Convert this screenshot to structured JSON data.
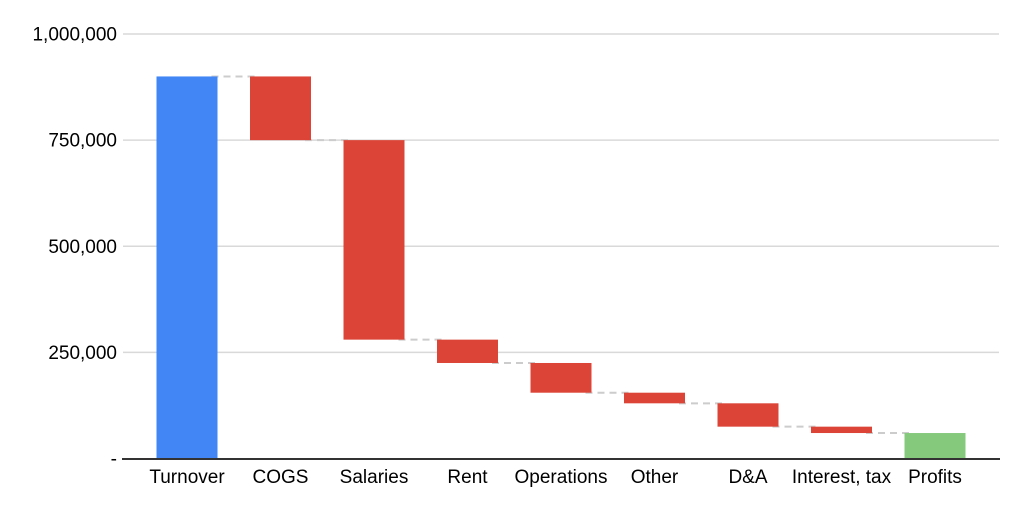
{
  "chart_data": {
    "type": "bar",
    "subtype": "waterfall",
    "title": "",
    "xlabel": "",
    "ylabel": "",
    "legend": "none",
    "grid": "horizontal",
    "connector_style": "dashed",
    "categories": [
      "Turnover",
      "COGS",
      "Salaries",
      "Rent",
      "Operations",
      "Other",
      "D&A",
      "Interest, tax",
      "Profits"
    ],
    "series": [
      {
        "name": "Amount",
        "values": [
          900000,
          -150000,
          -470000,
          -55000,
          -70000,
          -25000,
          -55000,
          -15000,
          60000
        ]
      }
    ],
    "bar_types": [
      "total",
      "decrease",
      "decrease",
      "decrease",
      "decrease",
      "decrease",
      "decrease",
      "decrease",
      "total"
    ],
    "levels": [
      {
        "start": 0,
        "end": 900000
      },
      {
        "start": 900000,
        "end": 750000
      },
      {
        "start": 750000,
        "end": 280000
      },
      {
        "start": 280000,
        "end": 225000
      },
      {
        "start": 225000,
        "end": 155000
      },
      {
        "start": 155000,
        "end": 130000
      },
      {
        "start": 130000,
        "end": 75000
      },
      {
        "start": 75000,
        "end": 60000
      },
      {
        "start": 0,
        "end": 60000
      }
    ],
    "bar_colors": [
      "#4285F4",
      "#DB4437",
      "#DB4437",
      "#DB4437",
      "#DB4437",
      "#DB4437",
      "#DB4437",
      "#DB4437",
      "#85C97D"
    ],
    "y_ticks": [
      {
        "value": 1000000,
        "label": "1,000,000"
      },
      {
        "value": 750000,
        "label": "750,000"
      },
      {
        "value": 500000,
        "label": "500,000"
      },
      {
        "value": 250000,
        "label": "250,000"
      },
      {
        "value": 0,
        "label": "-"
      }
    ],
    "ylim": [
      0,
      1000000
    ]
  },
  "colors": {
    "background": "#ffffff",
    "increase_total": "#4285F4",
    "decrease": "#DB4437",
    "final_total": "#85C97D",
    "gridline": "#d9d9d9",
    "axis_line": "#333333",
    "connector": "#cccccc",
    "text": "#000000"
  }
}
